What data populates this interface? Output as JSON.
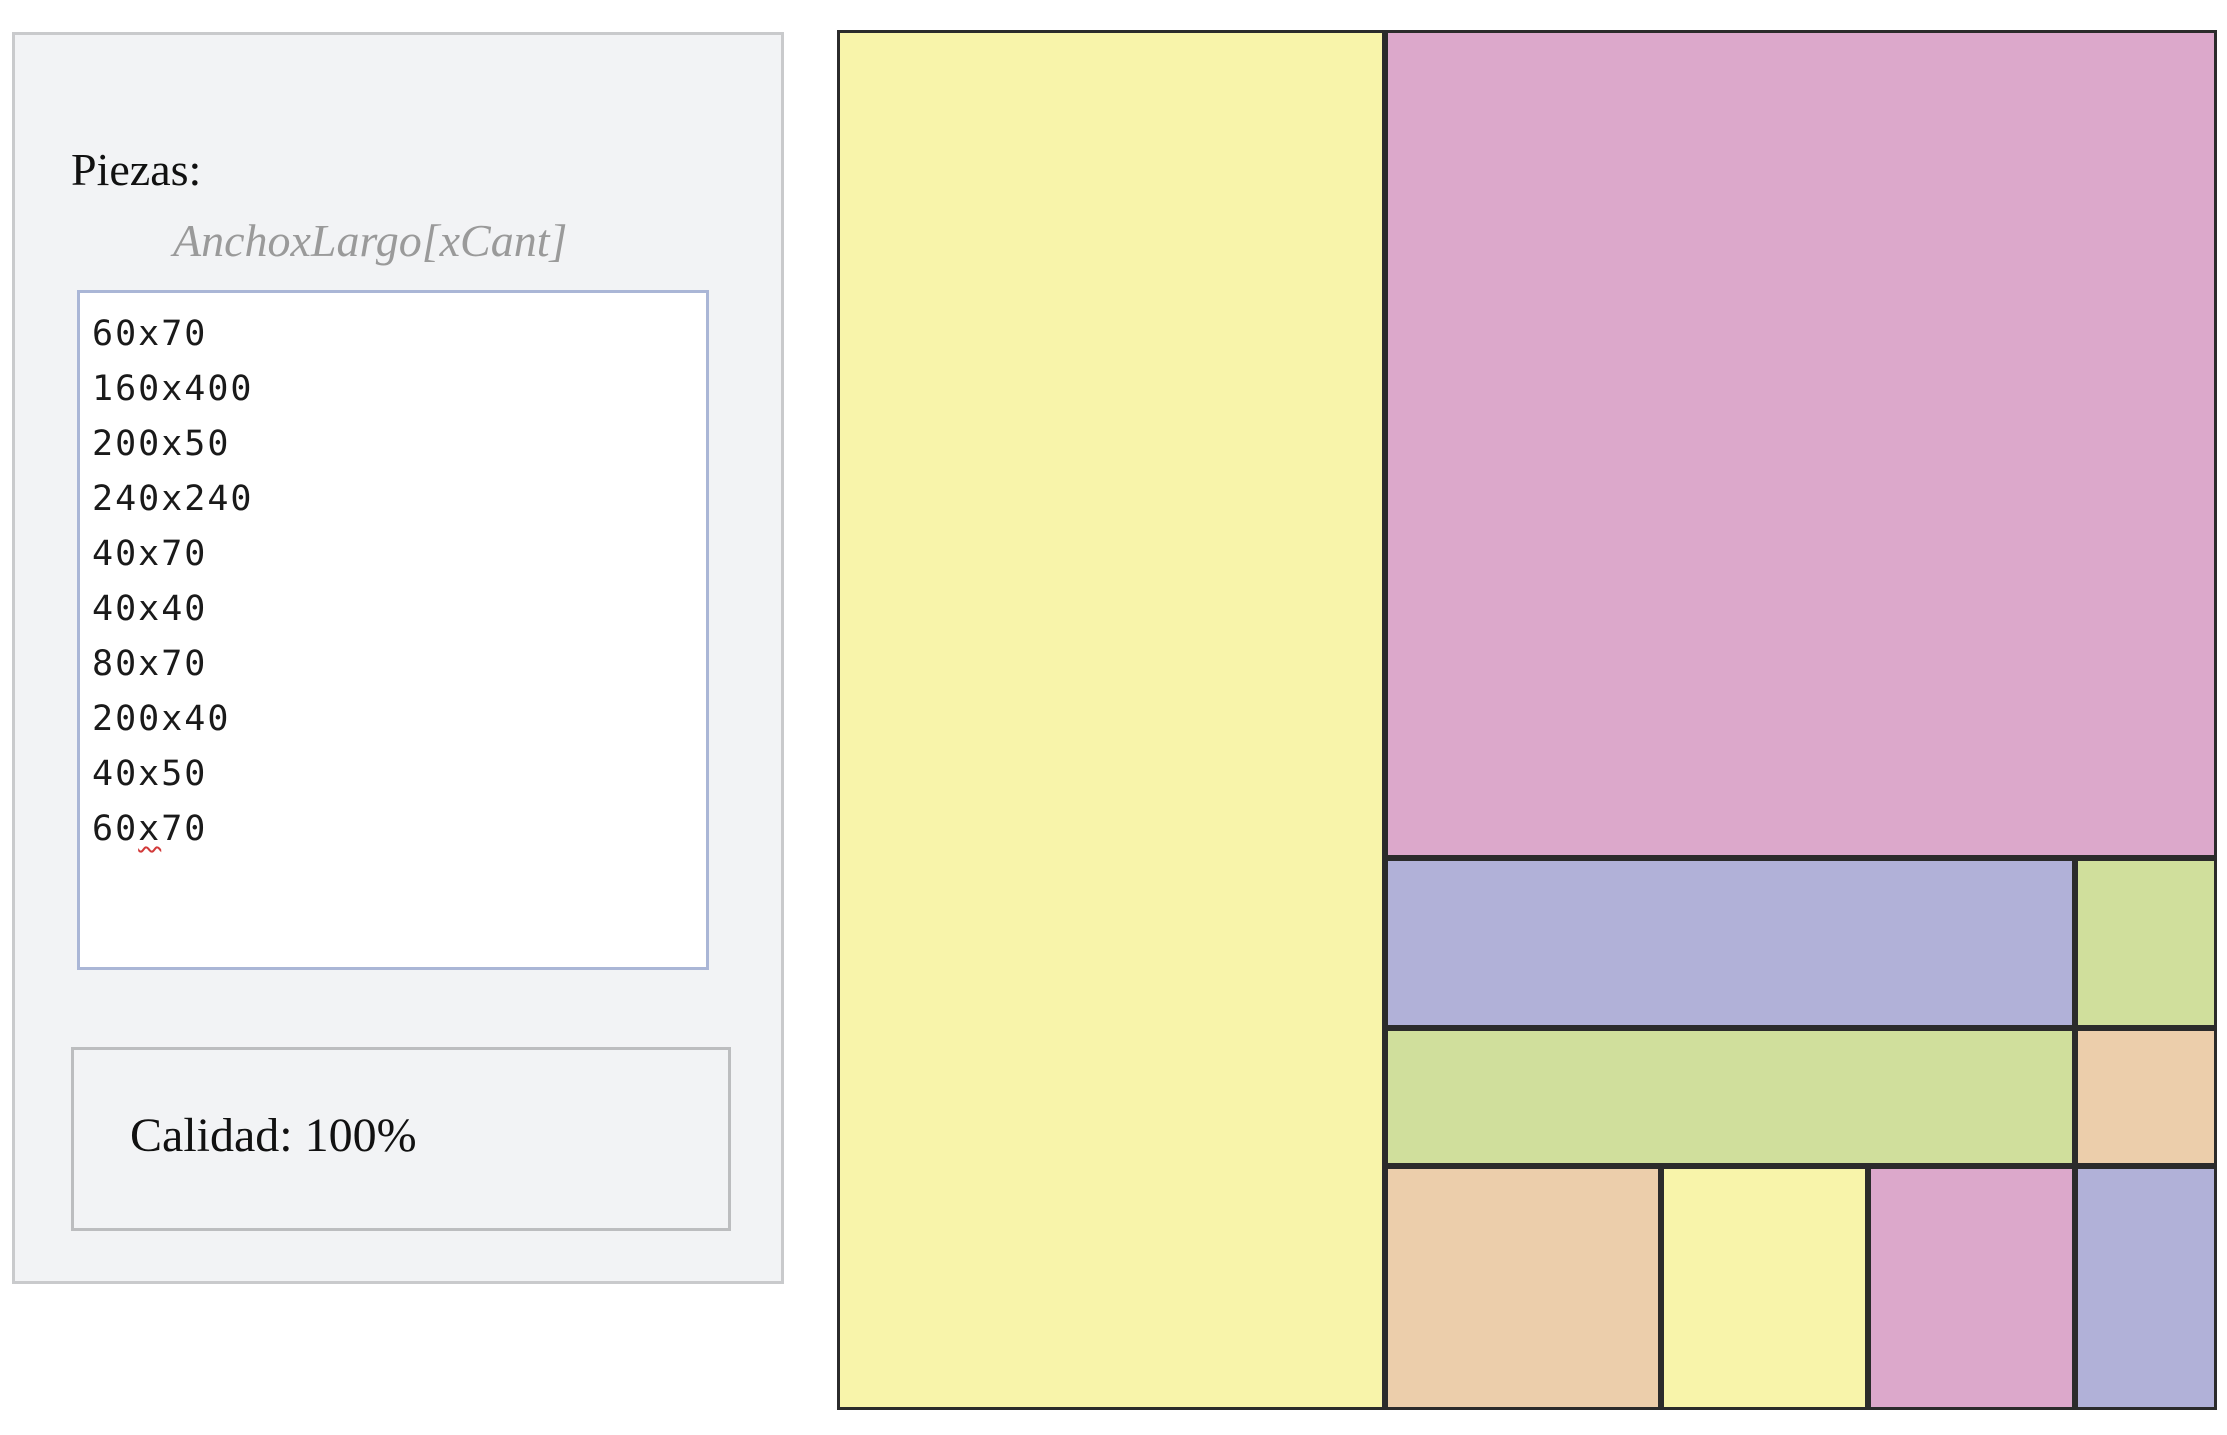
{
  "pieces": {
    "label": "Piezas:",
    "hint": "AnchoxLargo[xCant]",
    "lines": [
      "60x70",
      "160x400",
      "200x50",
      "240x240",
      "40x70",
      "40x40",
      "80x70",
      "200x40",
      "40x50",
      "60x70"
    ]
  },
  "quality": {
    "text": "Calidad: 100%"
  },
  "colors": {
    "yellow": "#f8f4aa",
    "pink": "#dca8cb",
    "blue": "#b1b1d8",
    "green": "#d0df9c",
    "peach": "#ecceab"
  },
  "layout_pieces": [
    {
      "name": "piece-160x400",
      "w": 160,
      "h": 400,
      "color": "yellow"
    },
    {
      "name": "piece-240x240",
      "w": 240,
      "h": 240,
      "color": "pink"
    },
    {
      "name": "piece-200x50",
      "w": 200,
      "h": 50,
      "color": "blue"
    },
    {
      "name": "piece-40x50",
      "w": 40,
      "h": 50,
      "color": "green"
    },
    {
      "name": "piece-200x40",
      "w": 200,
      "h": 40,
      "color": "green"
    },
    {
      "name": "piece-40x40",
      "w": 40,
      "h": 40,
      "color": "peach"
    },
    {
      "name": "piece-80x70",
      "w": 80,
      "h": 70,
      "color": "peach"
    },
    {
      "name": "piece-60x70-a",
      "w": 60,
      "h": 70,
      "color": "yellow"
    },
    {
      "name": "piece-60x70-b",
      "w": 60,
      "h": 70,
      "color": "pink"
    },
    {
      "name": "piece-40x70",
      "w": 40,
      "h": 70,
      "color": "blue"
    }
  ]
}
